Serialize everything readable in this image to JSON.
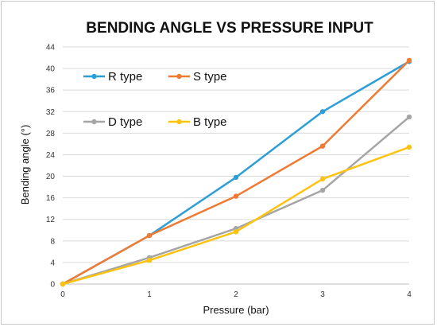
{
  "chart_data": {
    "type": "line",
    "title": "BENDING ANGLE VS PRESSURE INPUT",
    "xlabel": "Pressure (bar)",
    "ylabel": "Bending angle (°)",
    "x": [
      0,
      1,
      2,
      3,
      4
    ],
    "xticks": [
      "0",
      "1",
      "2",
      "3",
      "4"
    ],
    "xlim": [
      0,
      4
    ],
    "ylim": [
      0,
      44
    ],
    "yticks": [
      "0",
      "4",
      "8",
      "12",
      "16",
      "20",
      "24",
      "28",
      "32",
      "36",
      "40",
      "44"
    ],
    "grid": "horizontal",
    "legend": "top-left",
    "series": [
      {
        "name": "R type",
        "color": "#2e9fd6",
        "values": [
          0,
          9,
          19.8,
          32,
          41.3
        ]
      },
      {
        "name": "S type",
        "color": "#ef7a33",
        "values": [
          0,
          9,
          16.3,
          25.6,
          41.5
        ]
      },
      {
        "name": "D type",
        "color": "#a5a5a5",
        "values": [
          0,
          4.9,
          10.3,
          17.4,
          31
        ]
      },
      {
        "name": "B type",
        "color": "#ffc20e",
        "values": [
          0,
          4.4,
          9.7,
          19.5,
          25.4
        ]
      }
    ]
  }
}
